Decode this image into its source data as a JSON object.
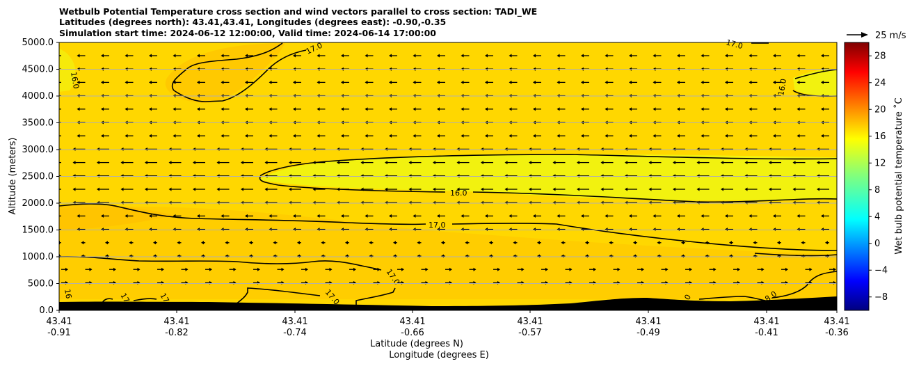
{
  "chart_data": {
    "type": "heatmap",
    "title_lines": [
      "Wetbulb Potential Temperature cross section and wind vectors parallel to cross section: TADI_WE",
      "Latitudes (degrees north): 43.41,43.41, Longitudes (degrees east): -0.90,-0.35",
      "Simulation start time: 2024-06-12 12:00:00, Valid time: 2024-06-14 17:00:00"
    ],
    "ylabel": "Altitude (meters)",
    "xlabel_lat": "Latitude (degrees N)",
    "xlabel_lon": "Longitude (degrees E)",
    "ylim": [
      0,
      5000
    ],
    "y_ticks": [
      "0.0",
      "500.0",
      "1000.0",
      "1500.0",
      "2000.0",
      "2500.0",
      "3000.0",
      "3500.0",
      "4000.0",
      "4500.0",
      "5000.0"
    ],
    "x_ticks": [
      {
        "lat": "43.41",
        "lon": "-0.91"
      },
      {
        "lat": "43.41",
        "lon": "-0.82"
      },
      {
        "lat": "43.41",
        "lon": "-0.74"
      },
      {
        "lat": "43.41",
        "lon": "-0.66"
      },
      {
        "lat": "43.41",
        "lon": "-0.57"
      },
      {
        "lat": "43.41",
        "lon": "-0.49"
      },
      {
        "lat": "43.41",
        "lon": "-0.41"
      },
      {
        "lat": "43.41",
        "lon": "-0.36"
      }
    ],
    "colorbar": {
      "label": "Wet bulb potential temperature $^\\circ$C",
      "label_display": "Wet bulb potential temperature ˚C",
      "range": [
        -10,
        30
      ],
      "ticks": [
        "−8",
        "−4",
        "0",
        "4",
        "8",
        "12",
        "16",
        "20",
        "24",
        "28"
      ],
      "tick_values": [
        -8,
        -4,
        0,
        4,
        8,
        12,
        16,
        20,
        24,
        28
      ]
    },
    "wind_key": {
      "label": "25 m/s"
    },
    "contour_labels": [
      "16.0",
      "17.0",
      "17.0",
      "16.0",
      "16.0",
      "17.0",
      "17.0",
      "16",
      "17",
      "17",
      "17.0",
      "17.0",
      "0",
      "8.0"
    ],
    "field_summary": {
      "dominant_value_c": 17,
      "min_value_c": 15.5,
      "max_value_c": 18
    }
  },
  "colors": {
    "field_base": "#ffd700",
    "field_warm": "#ffc000",
    "field_cool": "#f0f010",
    "terrain": "#000000",
    "gridline": "#b0b0b0"
  }
}
